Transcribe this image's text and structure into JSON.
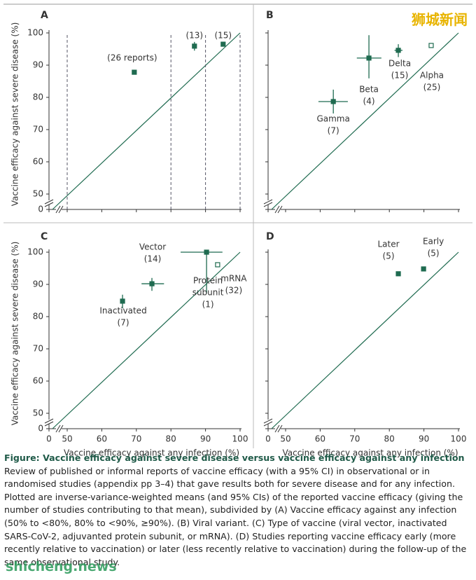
{
  "chart_data": [
    {
      "type": "scatter",
      "panel": "A",
      "xlim": [
        0,
        100
      ],
      "ylim": [
        0,
        100
      ],
      "xticks": [
        0,
        50,
        60,
        70,
        80,
        90,
        100
      ],
      "yticks": [
        0,
        50,
        60,
        70,
        80,
        90,
        100
      ],
      "tick_labels": {
        "x": false,
        "y": true
      },
      "ylabel": "Vaccine efficacy against severe disease (%)",
      "group_boundaries": [
        50,
        80,
        90,
        100
      ],
      "color": "#1f6b50",
      "points": [
        {
          "label": [
            "(26 reports)"
          ],
          "x": 69.4,
          "y": 87.8,
          "y_ci": [
            87.2,
            88.4
          ],
          "hollow": false
        },
        {
          "label": [
            "(13)"
          ],
          "x": 86.8,
          "y": 95.9,
          "y_ci": [
            94.5,
            97.2
          ],
          "hollow": false
        },
        {
          "label": [
            "(15)"
          ],
          "x": 95.1,
          "y": 96.5,
          "hollow": false
        }
      ]
    },
    {
      "type": "scatter",
      "panel": "B",
      "xlim": [
        0,
        100
      ],
      "ylim": [
        0,
        100
      ],
      "xticks": [
        0,
        50,
        60,
        70,
        80,
        90,
        100
      ],
      "yticks": [
        0,
        50,
        60,
        70,
        80,
        90,
        100
      ],
      "tick_labels": {
        "x": false,
        "y": false
      },
      "color": "#1f6b50",
      "points": [
        {
          "label": [
            "Beta",
            "(4)"
          ],
          "x": 74.1,
          "y": 92.2,
          "x_ci": [
            70.6,
            77.7
          ],
          "y_ci": [
            85.9,
            99.3
          ],
          "hollow": false
        },
        {
          "label": [
            "Delta",
            "(15)"
          ],
          "x": 82.6,
          "y": 94.6,
          "x_ci": [
            81.5,
            83.8
          ],
          "y_ci": [
            92.5,
            96.5
          ],
          "hollow": false
        },
        {
          "label": [
            "Alpha",
            "(25)"
          ],
          "x": 92.1,
          "y": 96.1,
          "hollow": true
        },
        {
          "label": [
            "Gamma",
            "(7)"
          ],
          "x": 63.8,
          "y": 78.7,
          "x_ci": [
            59.5,
            68
          ],
          "y_ci": [
            75,
            82.4
          ],
          "hollow": false
        }
      ]
    },
    {
      "type": "scatter",
      "panel": "C",
      "xlim": [
        0,
        100
      ],
      "ylim": [
        0,
        100
      ],
      "xticks": [
        0,
        50,
        60,
        70,
        80,
        90,
        100
      ],
      "yticks": [
        0,
        50,
        60,
        70,
        80,
        90,
        100
      ],
      "tick_labels": {
        "x": true,
        "y": true
      },
      "ylabel": "Vaccine efficacy against severe disease (%)",
      "xlabel": "Vaccine efficacy against any infection (%)",
      "color": "#1f6b50",
      "points": [
        {
          "label": [
            "Inactivated",
            "(7)"
          ],
          "x": 66,
          "y": 84.8,
          "y_ci": [
            82.6,
            86.8
          ],
          "hollow": false
        },
        {
          "label": [
            "Vector",
            "(14)"
          ],
          "x": 74.5,
          "y": 90.2,
          "x_ci": [
            71.5,
            78
          ],
          "y_ci": [
            88,
            92
          ],
          "hollow": false
        },
        {
          "label": [
            "Protein",
            "subunit",
            "(1)"
          ],
          "x": 90.3,
          "y": 100,
          "x_ci": [
            82.8,
            94.9
          ],
          "y_ci": [
            87.2,
            100
          ],
          "hollow": false
        },
        {
          "label": [
            "mRNA",
            "(32)"
          ],
          "x": 93.5,
          "y": 96.1,
          "hollow": true
        }
      ]
    },
    {
      "type": "scatter",
      "panel": "D",
      "xlim": [
        0,
        100
      ],
      "ylim": [
        0,
        100
      ],
      "xticks": [
        0,
        50,
        60,
        70,
        80,
        90,
        100
      ],
      "yticks": [
        0,
        50,
        60,
        70,
        80,
        90,
        100
      ],
      "tick_labels": {
        "x": true,
        "y": false
      },
      "xlabel": "Vaccine efficacy against any infection (%)",
      "color": "#1f6b50",
      "points": [
        {
          "label": [
            "Later",
            "(5)"
          ],
          "x": 82.6,
          "y": 93.3,
          "hollow": false
        },
        {
          "label": [
            "Early",
            "(5)"
          ],
          "x": 89.9,
          "y": 94.8,
          "hollow": false
        }
      ]
    }
  ],
  "caption": {
    "title": "Figure: Vaccine efficacy against severe disease versus vaccine efficacy against any infection",
    "text": "Review of published or informal reports of vaccine efficacy (with a 95% CI) in observational or in randomised studies (appendix pp 3–4) that gave results both for severe disease and for any infection. Plotted are inverse-variance-weighted means (and 95% CIs) of the reported vaccine efficacy (giving the number of studies contributing to that mean), subdivided by (A) Vaccine efficacy against any infection (50% to <80%, 80% to <90%, ≥90%). (B) Viral variant. (C) Type of vaccine (viral vector, inactivated SARS-CoV-2, adjuvanted protein subunit, or mRNA). (D) Studies reporting vaccine efficacy early (more recently relative to vaccination) or later (less recently relative to vaccination) during the follow-up of the same observational study."
  },
  "watermarks": [
    "狮城新闻",
    "shicheng.news"
  ]
}
